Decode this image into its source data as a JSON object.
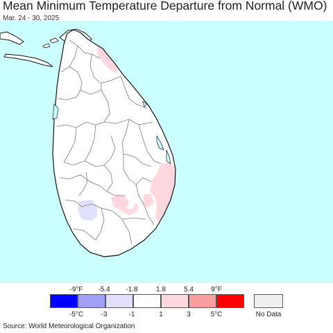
{
  "title": "Mean Minimum Temperature Departure from Normal (WMO)",
  "subtitle": "Mar. 24 - 30, 2025",
  "source": "Source: World Meteorological Organization",
  "colors": {
    "ocean": "#ccffff",
    "land": "#ffffff",
    "border": "#7a7a7a",
    "coast": "#111111",
    "warm_slight": "#ffd8e0",
    "cool_slight": "#e0e0fa"
  },
  "legend": {
    "fahrenheit_ticks": [
      "-9°F",
      "-5.4",
      "-1.8",
      "1.8",
      "5.4",
      "9°F"
    ],
    "celsius_ticks": [
      "-5°C",
      "-3",
      "-1",
      "1",
      "3",
      "5°C"
    ],
    "bins": [
      {
        "color": "#0000ff"
      },
      {
        "color": "#a0a0f6"
      },
      {
        "color": "#e0e0fa"
      },
      {
        "color": "#ffffff"
      },
      {
        "color": "#ffd8e0"
      },
      {
        "color": "#f8a0a0"
      },
      {
        "color": "#ff0000"
      }
    ],
    "no_data_label": "No Data",
    "no_data_color": "#f0eeee"
  }
}
